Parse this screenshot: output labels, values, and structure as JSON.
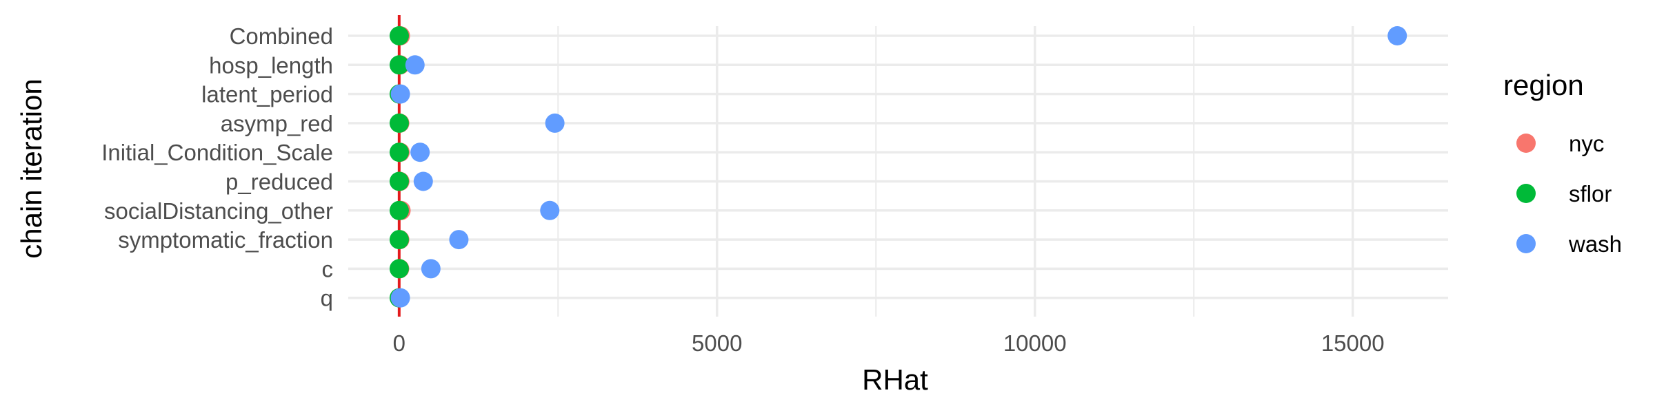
{
  "chart_data": {
    "type": "scatter",
    "xlabel": "RHat",
    "ylabel": "chain iteration",
    "xlim": [
      -800,
      16500
    ],
    "x_ticks": [
      0,
      5000,
      10000,
      15000
    ],
    "x_tick_labels": [
      "0",
      "5000",
      "10000",
      "15000"
    ],
    "grid": true,
    "reference_line": {
      "x": 1,
      "color": "#E31A1C"
    },
    "categories": [
      "Combined",
      "hosp_length",
      "latent_period",
      "asymp_red",
      "Initial_Condition_Scale",
      "p_reduced",
      "socialDistancing_other",
      "symptomatic_fraction",
      "c",
      "q"
    ],
    "legend": {
      "title": "region",
      "position": "right"
    },
    "series": [
      {
        "name": "nyc",
        "color": "#F8766D",
        "values": [
          20,
          15,
          5,
          10,
          15,
          12,
          30,
          10,
          8,
          5
        ]
      },
      {
        "name": "sflor",
        "color": "#00BA38",
        "values": [
          2,
          2,
          2,
          2,
          2,
          2,
          2,
          2,
          2,
          2
        ]
      },
      {
        "name": "wash",
        "color": "#619CFF",
        "values": [
          15700,
          250,
          20,
          2450,
          330,
          380,
          2370,
          940,
          500,
          20
        ]
      }
    ]
  }
}
